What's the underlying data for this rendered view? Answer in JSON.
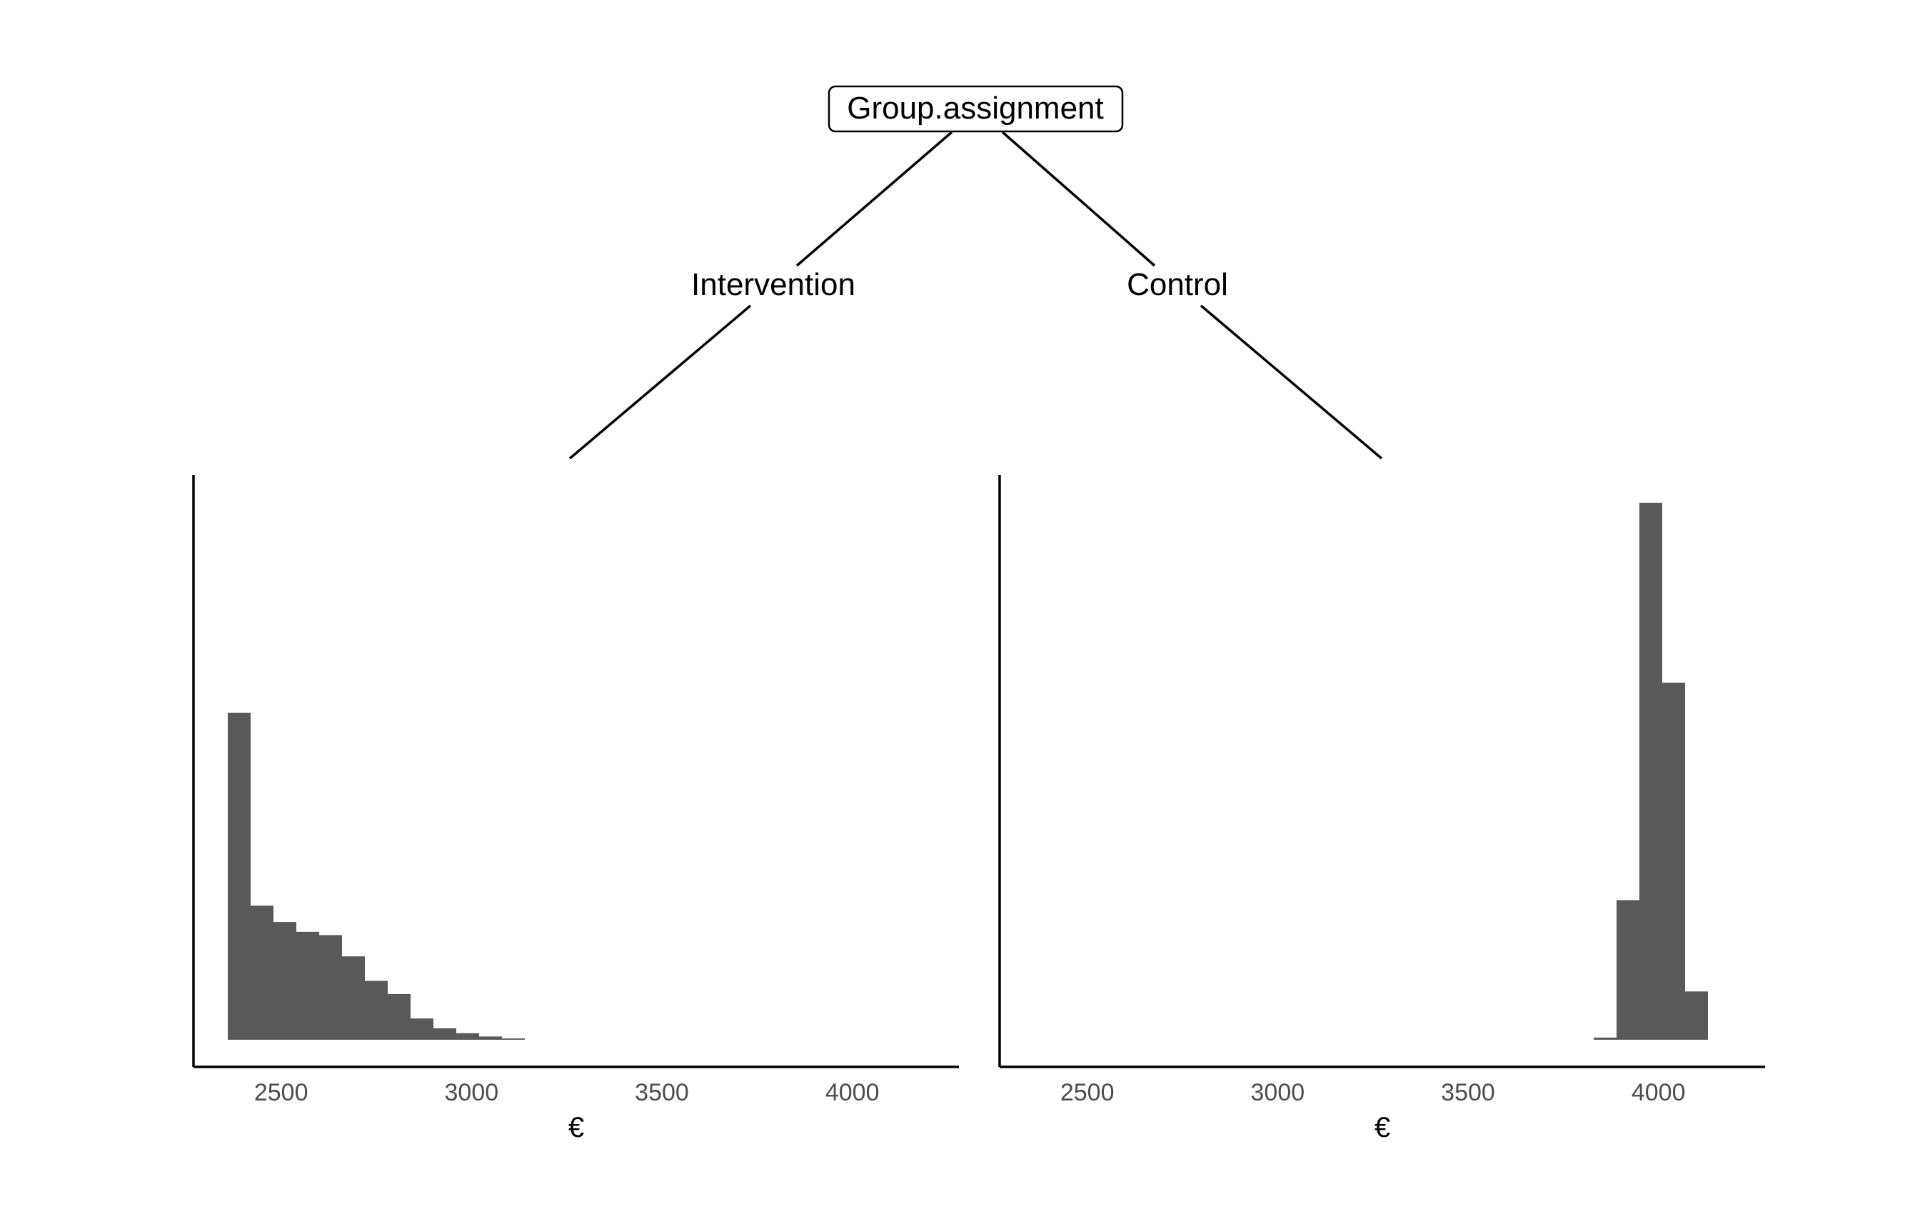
{
  "root_node": {
    "label": "Group.assignment"
  },
  "branches": [
    {
      "label": "Intervention"
    },
    {
      "label": "Control"
    }
  ],
  "colors": {
    "bar": "#595959",
    "axis": "#000000",
    "tick_text": "#4d4d4d"
  },
  "chart_data": [
    {
      "type": "bar",
      "title": "Intervention",
      "xlabel": "€",
      "ylabel": "",
      "xlim": [
        2270,
        4280
      ],
      "x_ticks": [
        "2500",
        "3000",
        "3500",
        "4000"
      ],
      "bin_width": 60,
      "bin_start": [
        2360,
        2420,
        2480,
        2540,
        2600,
        2660,
        2720,
        2780,
        2840,
        2900,
        2960,
        3020,
        3080
      ],
      "values": [
        1.0,
        0.41,
        0.36,
        0.33,
        0.32,
        0.255,
        0.18,
        0.14,
        0.065,
        0.035,
        0.02,
        0.01,
        0.004
      ],
      "grid": false,
      "legend": "none"
    },
    {
      "type": "bar",
      "title": "Control",
      "xlabel": "€",
      "ylabel": "",
      "xlim": [
        2270,
        4280
      ],
      "x_ticks": [
        "2500",
        "3000",
        "3500",
        "4000"
      ],
      "bin_width": 60,
      "bin_start": [
        3830,
        3890,
        3950,
        4010,
        4070
      ],
      "values": [
        0.004,
        0.26,
        1.0,
        0.665,
        0.09
      ],
      "grid": false,
      "legend": "none"
    }
  ]
}
